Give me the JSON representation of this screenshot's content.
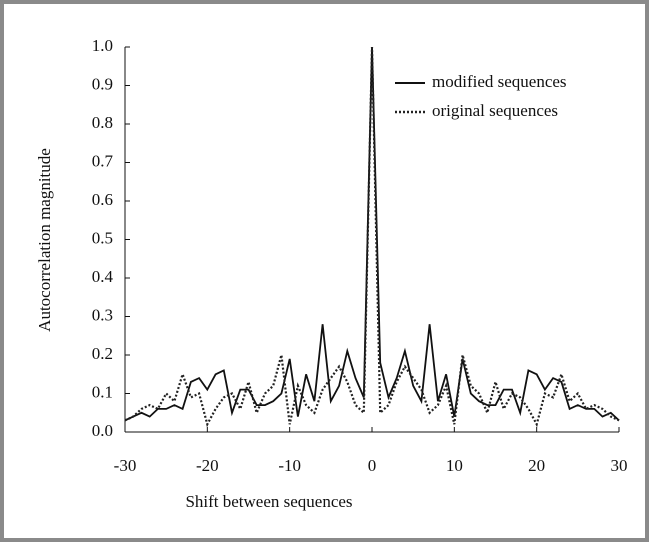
{
  "chart_data": {
    "type": "line",
    "xlabel": "Shift between sequences",
    "ylabel": "Autocorrelation magnitude",
    "x": [
      -30,
      -29,
      -28,
      -27,
      -26,
      -25,
      -24,
      -23,
      -22,
      -21,
      -20,
      -19,
      -18,
      -17,
      -16,
      -15,
      -14,
      -13,
      -12,
      -11,
      -10,
      -9,
      -8,
      -7,
      -6,
      -5,
      -4,
      -3,
      -2,
      -1,
      0,
      1,
      2,
      3,
      4,
      5,
      6,
      7,
      8,
      9,
      10,
      11,
      12,
      13,
      14,
      15,
      16,
      17,
      18,
      19,
      20,
      21,
      22,
      23,
      24,
      25,
      26,
      27,
      28,
      29,
      30
    ],
    "series": [
      {
        "name": "modified sequences",
        "color": "#111111",
        "dash": "none",
        "values": [
          0.03,
          0.04,
          0.05,
          0.04,
          0.06,
          0.06,
          0.07,
          0.06,
          0.13,
          0.14,
          0.11,
          0.15,
          0.16,
          0.05,
          0.11,
          0.11,
          0.07,
          0.07,
          0.08,
          0.1,
          0.19,
          0.04,
          0.15,
          0.08,
          0.28,
          0.08,
          0.12,
          0.21,
          0.14,
          0.09,
          1.0,
          0.18,
          0.09,
          0.14,
          0.21,
          0.12,
          0.08,
          0.28,
          0.08,
          0.15,
          0.04,
          0.19,
          0.1,
          0.08,
          0.07,
          0.07,
          0.11,
          0.11,
          0.05,
          0.16,
          0.15,
          0.11,
          0.14,
          0.13,
          0.06,
          0.07,
          0.06,
          0.06,
          0.04,
          0.05,
          0.03
        ]
      },
      {
        "name": "original sequences",
        "color": "#222222",
        "dash": "2,2",
        "values": [
          0.03,
          0.04,
          0.06,
          0.07,
          0.06,
          0.1,
          0.08,
          0.15,
          0.09,
          0.1,
          0.02,
          0.06,
          0.09,
          0.1,
          0.06,
          0.13,
          0.05,
          0.1,
          0.12,
          0.2,
          0.02,
          0.12,
          0.07,
          0.05,
          0.11,
          0.14,
          0.17,
          0.13,
          0.07,
          0.05,
          1.0,
          0.05,
          0.07,
          0.13,
          0.17,
          0.14,
          0.11,
          0.05,
          0.07,
          0.12,
          0.02,
          0.2,
          0.12,
          0.1,
          0.05,
          0.13,
          0.06,
          0.1,
          0.09,
          0.06,
          0.02,
          0.1,
          0.09,
          0.15,
          0.08,
          0.1,
          0.06,
          0.07,
          0.06,
          0.04,
          0.03
        ]
      }
    ],
    "xlim": [
      -30,
      30
    ],
    "xticks": [
      -30,
      -20,
      -10,
      0,
      10,
      20,
      30
    ],
    "ylim": [
      0,
      1
    ],
    "yticks": [
      {
        "value": 0,
        "label": "0.0"
      },
      0.1,
      0.2,
      0.3,
      0.4,
      0.5,
      0.6,
      0.7,
      0.8,
      0.9,
      {
        "value": 1,
        "label": "1.0"
      }
    ],
    "legend": "upper right"
  }
}
